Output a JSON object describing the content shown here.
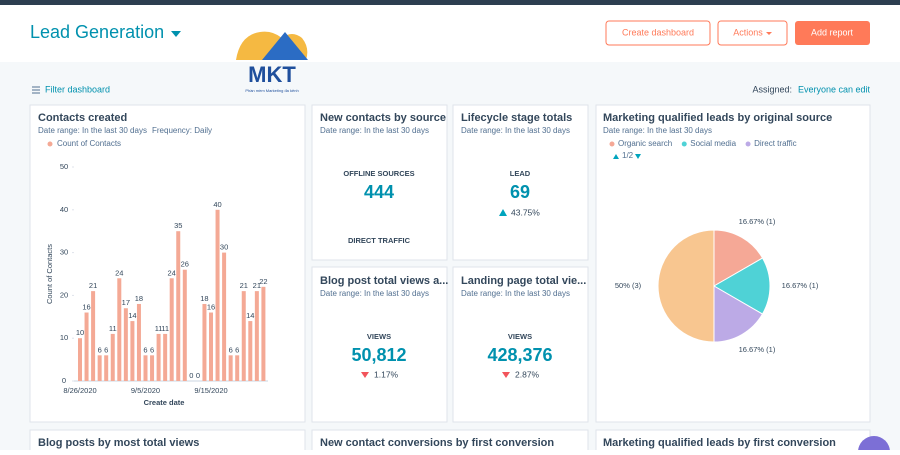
{
  "header": {
    "title": "Lead Generation",
    "buttons": [
      "Create dashboard",
      "Actions",
      "Add report"
    ]
  },
  "logo": {
    "text": "MKT",
    "tagline": "Phần mềm Marketing đa kênh"
  },
  "toolbar": {
    "filter": "Filter dashboard",
    "assigned_label": "Assigned:",
    "assigned_value": "Everyone can edit"
  },
  "contacts_created": {
    "title": "Contacts created",
    "date_range": "Date range: In the last 30 days",
    "frequency": "Frequency: Daily",
    "chart_data": {
      "type": "bar",
      "y_label": "Count of Contacts",
      "x_label": "Create date",
      "series": [
        {
          "name": "Count of Contacts",
          "color": "#f4a995",
          "values": [
            10,
            16,
            21,
            6,
            6,
            11,
            24,
            17,
            14,
            18,
            6,
            6,
            11,
            11,
            24,
            35,
            26,
            0,
            0,
            18,
            16,
            40,
            30,
            6,
            6,
            21,
            14,
            21,
            22
          ]
        }
      ],
      "categories": [
        "8/26/2020",
        null,
        null,
        null,
        null,
        null,
        null,
        null,
        null,
        null,
        "9/5/2020",
        null,
        null,
        null,
        null,
        null,
        null,
        null,
        null,
        null,
        "9/15/2020",
        null,
        null,
        null,
        null,
        null,
        null,
        null,
        null
      ],
      "ylim": [
        0,
        50
      ],
      "yticks": [
        0,
        10,
        20,
        30,
        40,
        50
      ]
    }
  },
  "new_contacts": {
    "title": "New contacts by source",
    "date_range": "Date range: In the last 30 days",
    "label": "OFFLINE SOURCES",
    "value": "444",
    "label2": "DIRECT TRAFFIC"
  },
  "lifecycle": {
    "title": "Lifecycle stage totals",
    "date_range": "Date range: In the last 30 days",
    "label": "LEAD",
    "value": "69",
    "change": "43.75%"
  },
  "blog_views": {
    "title": "Blog post total views a...",
    "date_range": "Date range: In the last 30 days",
    "label": "VIEWS",
    "value": "50,812",
    "change": "1.17%"
  },
  "landing_views": {
    "title": "Landing page total vie...",
    "date_range": "Date range: In the last 30 days",
    "label": "VIEWS",
    "value": "428,376",
    "change": "2.87%"
  },
  "mql_source": {
    "title": "Marketing qualified leads by original source",
    "date_range": "Date range: In the last 30 days",
    "page": "1/2",
    "chart_data": {
      "type": "pie",
      "slices": [
        {
          "name": "Organic search",
          "color": "#f5a896",
          "value": 16.67,
          "label": "16.67% (1)"
        },
        {
          "name": "Social media",
          "color": "#4fd2d6",
          "value": 16.67,
          "label": "16.67% (1)"
        },
        {
          "name": "Direct traffic",
          "color": "#bcaae6",
          "value": 16.67,
          "label": "16.67% (1)"
        },
        {
          "color": "#f8c690",
          "value": 50,
          "label": "50% (3)"
        }
      ]
    }
  },
  "bottom_row": [
    "Blog posts by most total views",
    "New contact conversions by first conversion",
    "Marketing qualified leads by first conversion"
  ]
}
